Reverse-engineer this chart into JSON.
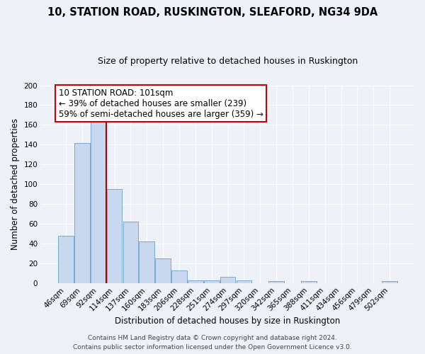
{
  "title": "10, STATION ROAD, RUSKINGTON, SLEAFORD, NG34 9DA",
  "subtitle": "Size of property relative to detached houses in Ruskington",
  "xlabel": "Distribution of detached houses by size in Ruskington",
  "ylabel": "Number of detached properties",
  "bar_labels": [
    "46sqm",
    "69sqm",
    "92sqm",
    "114sqm",
    "137sqm",
    "160sqm",
    "183sqm",
    "206sqm",
    "228sqm",
    "251sqm",
    "274sqm",
    "297sqm",
    "320sqm",
    "342sqm",
    "365sqm",
    "388sqm",
    "411sqm",
    "434sqm",
    "456sqm",
    "479sqm",
    "502sqm"
  ],
  "bar_heights": [
    48,
    142,
    163,
    95,
    62,
    42,
    25,
    13,
    3,
    3,
    6,
    3,
    0,
    2,
    0,
    2,
    0,
    0,
    0,
    0,
    2
  ],
  "bar_color": "#c8d8ee",
  "bar_edge_color": "#7aaad0",
  "vline_x": 2.5,
  "vline_color": "#aa0000",
  "annotation_text": "10 STATION ROAD: 101sqm\n← 39% of detached houses are smaller (239)\n59% of semi-detached houses are larger (359) →",
  "annotation_box_edgecolor": "#cc0000",
  "annotation_box_facecolor": "#ffffff",
  "ylim": [
    0,
    200
  ],
  "yticks": [
    0,
    20,
    40,
    60,
    80,
    100,
    120,
    140,
    160,
    180,
    200
  ],
  "footer_line1": "Contains HM Land Registry data © Crown copyright and database right 2024.",
  "footer_line2": "Contains public sector information licensed under the Open Government Licence v3.0.",
  "bg_color": "#eef2f8",
  "grid_color": "#ffffff",
  "title_fontsize": 10.5,
  "subtitle_fontsize": 9,
  "axis_label_fontsize": 8.5,
  "tick_fontsize": 7.5,
  "footer_fontsize": 6.5,
  "annot_fontsize": 8.5
}
